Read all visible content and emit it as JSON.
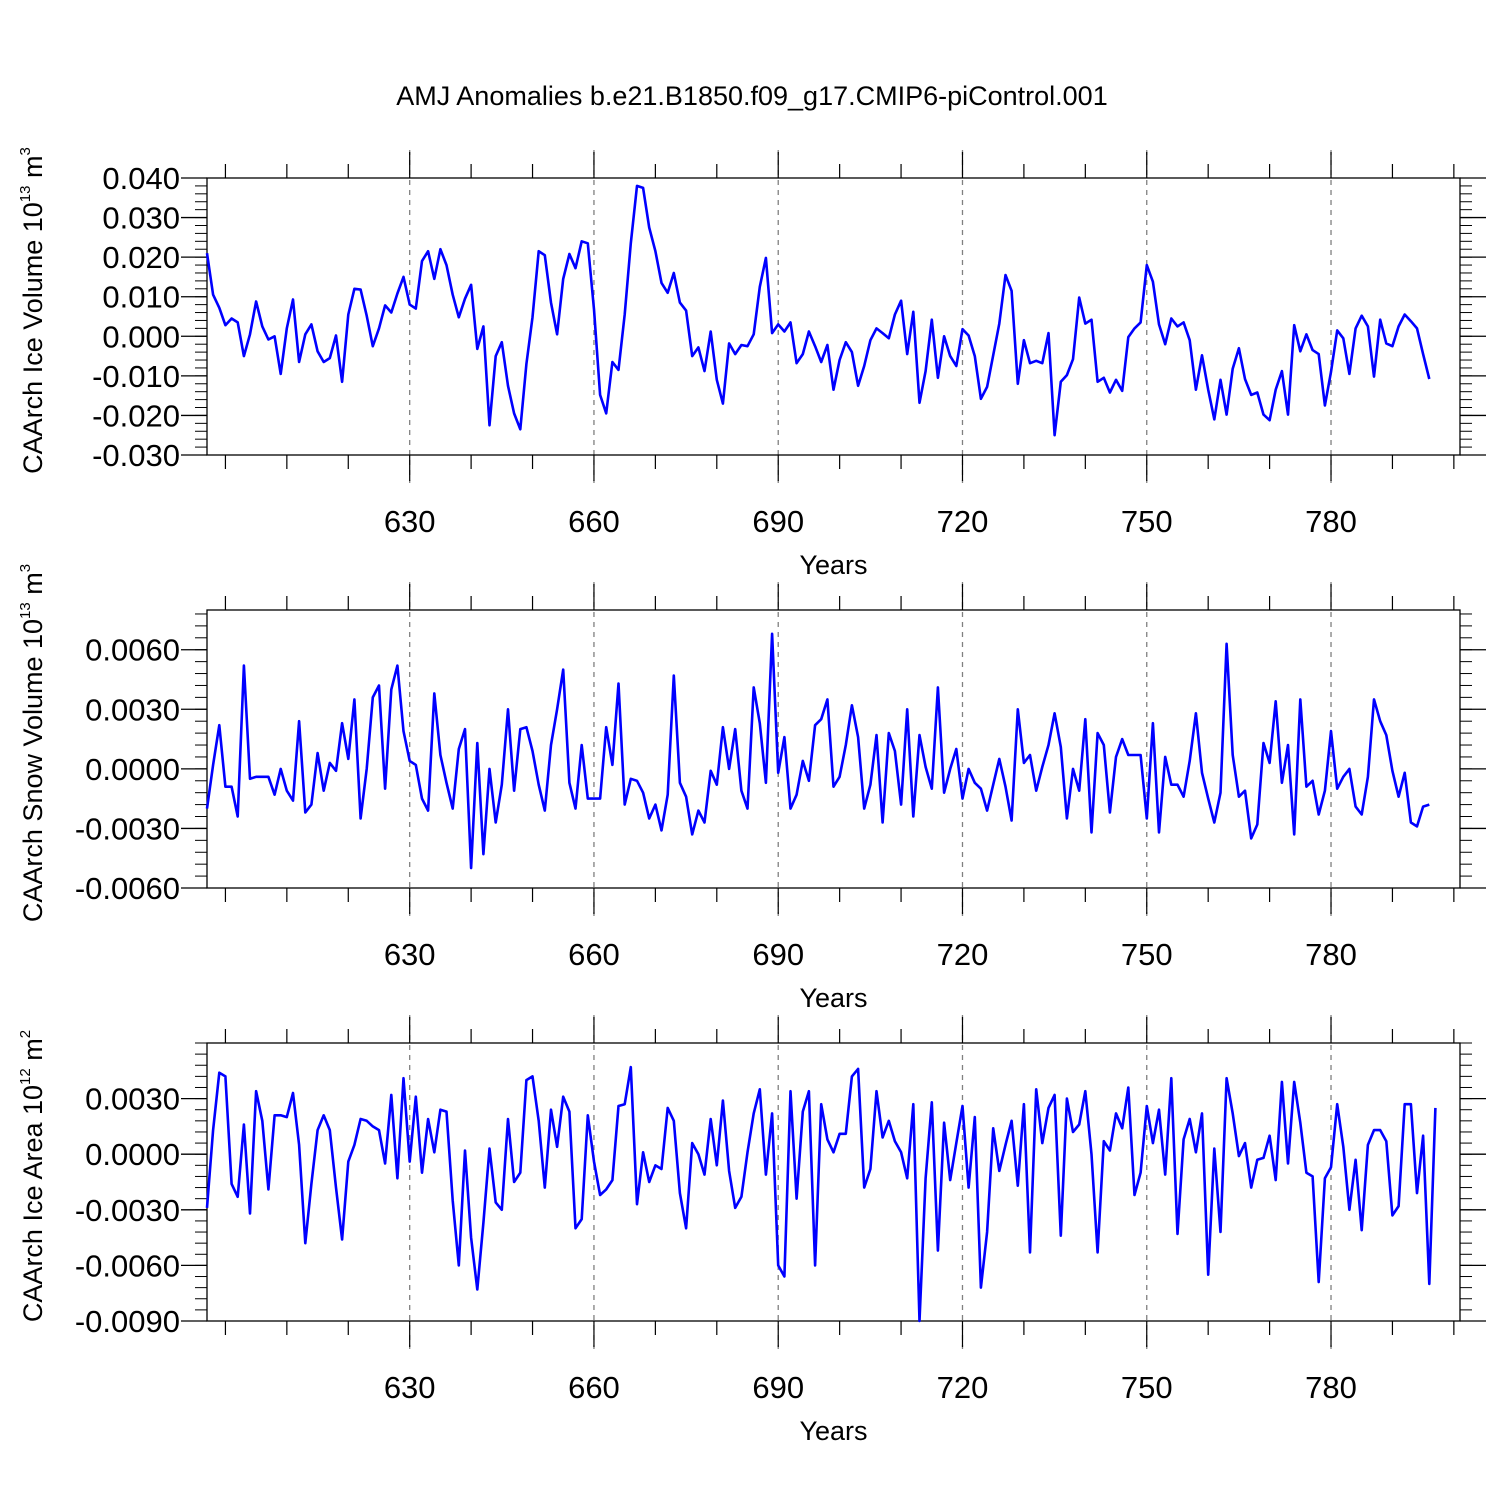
{
  "title": "AMJ Anomalies b.e21.B1850.f09_g17.CMIP6-piControl.001",
  "colors": {
    "line": "#0000ff",
    "grid": "#808080",
    "axes": "#000000"
  },
  "chart_data": [
    {
      "type": "line",
      "xlabel": "Years",
      "ylabel": {
        "text": "CAArch Ice Volume 10",
        "exponent": "13",
        "unit": " m",
        "unit_exponent": "3"
      },
      "x_range": [
        597,
        801
      ],
      "x_ticks": [
        "630",
        "660",
        "690",
        "720",
        "750",
        "780"
      ],
      "vertical_grid": "dashed at major x ticks",
      "ylim": [
        -0.03,
        0.04
      ],
      "y_ticks": [
        "0.040",
        "0.030",
        "0.020",
        "0.010",
        "0.000",
        "-0.010",
        "-0.020",
        "-0.030"
      ],
      "series": [
        {
          "x_start": 597,
          "values": [
            0.021,
            0.0105,
            0.0072,
            0.0028,
            0.0045,
            0.0035,
            -0.005,
            0.0005,
            0.0088,
            0.0025,
            -0.0008,
            0.0,
            -0.0095,
            0.002,
            0.0093,
            -0.0065,
            0.0005,
            0.003,
            -0.0038,
            -0.0065,
            -0.0055,
            0.0002,
            -0.0115,
            0.0055,
            0.012,
            0.0118,
            0.0052,
            -0.0025,
            0.002,
            0.0078,
            0.006,
            0.0108,
            0.015,
            0.008,
            0.007,
            0.019,
            0.0215,
            0.0145,
            0.022,
            0.018,
            0.0105,
            0.0048,
            0.0095,
            0.013,
            -0.0032,
            0.0025,
            -0.0225,
            -0.005,
            -0.0015,
            -0.0125,
            -0.0195,
            -0.0235,
            -0.007,
            0.0048,
            0.0215,
            0.0205,
            0.0085,
            0.0005,
            0.0145,
            0.0208,
            0.0172,
            0.024,
            0.0235,
            0.0068,
            -0.0148,
            -0.0195,
            -0.0065,
            -0.0085,
            0.0055,
            0.0235,
            0.038,
            0.0375,
            0.0275,
            0.0215,
            0.0135,
            0.011,
            0.016,
            0.0085,
            0.0065,
            -0.005,
            -0.0028,
            -0.0088,
            0.0012,
            -0.011,
            -0.017,
            -0.0018,
            -0.0045,
            -0.0022,
            -0.0025,
            0.0005,
            0.0125,
            0.0198,
            0.0008,
            0.003,
            0.0012,
            0.0035,
            -0.0068,
            -0.0045,
            0.0012,
            -0.0025,
            -0.0065,
            -0.0022,
            -0.0135,
            -0.006,
            -0.0015,
            -0.004,
            -0.0125,
            -0.0075,
            -0.001,
            0.002,
            0.0008,
            -0.0005,
            0.0055,
            0.009,
            -0.0045,
            0.0062,
            -0.0168,
            -0.0088,
            0.0042,
            -0.0105,
            0.0,
            -0.005,
            -0.0075,
            0.0018,
            0.0002,
            -0.005,
            -0.0158,
            -0.0128,
            -0.0048,
            0.0032,
            0.0155,
            0.0115,
            -0.012,
            -0.001,
            -0.0068,
            -0.0062,
            -0.0068,
            0.0008,
            -0.025,
            -0.0115,
            -0.0098,
            -0.0058,
            0.0098,
            0.0032,
            0.0042,
            -0.0115,
            -0.0105,
            -0.0142,
            -0.011,
            -0.0138,
            -0.0002,
            0.002,
            0.0035,
            0.018,
            0.0138,
            0.003,
            -0.002,
            0.0045,
            0.0025,
            0.0035,
            -0.001,
            -0.0135,
            -0.0048,
            -0.0135,
            -0.021,
            -0.011,
            -0.0198,
            -0.0082,
            -0.003,
            -0.0108,
            -0.0148,
            -0.0142,
            -0.0198,
            -0.0212,
            -0.0135,
            -0.0088,
            -0.0198,
            0.0028,
            -0.0038,
            0.0005,
            -0.0035,
            -0.0045,
            -0.0175,
            -0.009,
            0.0015,
            -0.0005,
            -0.0095,
            0.002,
            0.0052,
            0.0025,
            -0.0102,
            0.0042,
            -0.0018,
            -0.0025,
            0.0025,
            0.0055,
            0.0038,
            0.002,
            -0.0045,
            -0.0108
          ]
        }
      ]
    },
    {
      "type": "line",
      "xlabel": "Years",
      "ylabel": {
        "text": "CAArch Snow Volume 10",
        "exponent": "13",
        "unit": " m",
        "unit_exponent": "3"
      },
      "x_range": [
        597,
        801
      ],
      "x_ticks": [
        "630",
        "660",
        "690",
        "720",
        "750",
        "780"
      ],
      "vertical_grid": "dashed at major x ticks",
      "ylim": [
        -0.006,
        0.008
      ],
      "y_ticks": [
        "0.0060",
        "0.0030",
        "0.0000",
        "-0.0030",
        "-0.0060"
      ],
      "series": [
        {
          "x_start": 597,
          "values": [
            -0.002,
            0.0002,
            0.0022,
            -0.0009,
            -0.0009,
            -0.0024,
            0.0052,
            -0.0005,
            -0.0004,
            -0.0004,
            -0.0004,
            -0.0013,
            0.0,
            -0.0011,
            -0.0016,
            0.0024,
            -0.0022,
            -0.0018,
            0.0008,
            -0.0011,
            0.0003,
            -0.0001,
            0.0023,
            0.0005,
            0.0035,
            -0.0025,
            0.0,
            0.0036,
            0.0042,
            -0.001,
            0.004,
            0.0052,
            0.0019,
            0.0004,
            0.0002,
            -0.0015,
            -0.0021,
            0.0038,
            0.0007,
            -0.0007,
            -0.002,
            0.001,
            0.002,
            -0.005,
            0.0013,
            -0.0043,
            0.0,
            -0.0027,
            -0.0008,
            0.003,
            -0.0011,
            0.002,
            0.0021,
            0.0009,
            -0.0008,
            -0.0021,
            0.0012,
            0.003,
            0.005,
            -0.0007,
            -0.002,
            0.0012,
            -0.0015,
            -0.0015,
            -0.0015,
            0.0021,
            0.0002,
            0.0043,
            -0.0018,
            -0.0005,
            -0.0006,
            -0.0012,
            -0.0025,
            -0.0018,
            -0.0031,
            -0.0013,
            0.0047,
            -0.0007,
            -0.0014,
            -0.0033,
            -0.0021,
            -0.0027,
            -0.0001,
            -0.0008,
            0.0021,
            0.0,
            0.002,
            -0.0011,
            -0.002,
            0.0041,
            0.0023,
            -0.0007,
            0.0068,
            -0.0002,
            0.0016,
            -0.002,
            -0.0013,
            0.0004,
            -0.0006,
            0.0022,
            0.0025,
            0.0035,
            -0.0009,
            -0.0004,
            0.0012,
            0.0032,
            0.0016,
            -0.002,
            -0.0008,
            0.0017,
            -0.0027,
            0.0018,
            0.0009,
            -0.0018,
            0.003,
            -0.0024,
            0.0017,
            0.0001,
            -0.001,
            0.0041,
            -0.0012,
            0.0,
            0.001,
            -0.0015,
            0.0,
            -0.0007,
            -0.001,
            -0.0021,
            -0.0008,
            0.0005,
            -0.0009,
            -0.0026,
            0.003,
            0.0003,
            0.0007,
            -0.0011,
            0.0001,
            0.0012,
            0.0028,
            0.0011,
            -0.0025,
            0.0,
            -0.0011,
            0.0025,
            -0.0032,
            0.0018,
            0.0012,
            -0.0022,
            0.0006,
            0.0015,
            0.0007,
            0.0007,
            0.0007,
            -0.0025,
            0.0023,
            -0.0032,
            0.0006,
            -0.0008,
            -0.0008,
            -0.0014,
            0.0004,
            0.0028,
            -0.0002,
            -0.0015,
            -0.0027,
            -0.0012,
            0.0063,
            0.0007,
            -0.0014,
            -0.0011,
            -0.0035,
            -0.0028,
            0.0013,
            0.0003,
            0.0034,
            -0.0007,
            0.0012,
            -0.0033,
            0.0035,
            -0.0009,
            -0.0006,
            -0.0023,
            -0.0011,
            0.0019,
            -0.001,
            -0.0004,
            0.0,
            -0.0019,
            -0.0023,
            -0.0004,
            0.0035,
            0.0024,
            0.0017,
            -0.0001,
            -0.0014,
            -0.0002,
            -0.0027,
            -0.0029,
            -0.0019,
            -0.0018
          ]
        }
      ]
    },
    {
      "type": "line",
      "xlabel": "Years",
      "ylabel": {
        "text": "CAArch Ice Area 10",
        "exponent": "12",
        "unit": " m",
        "unit_exponent": "2"
      },
      "x_range": [
        597,
        801
      ],
      "x_ticks": [
        "630",
        "660",
        "690",
        "720",
        "750",
        "780"
      ],
      "vertical_grid": "dashed at major x ticks",
      "ylim": [
        -0.009,
        0.006
      ],
      "y_ticks": [
        "0.0030",
        "0.0000",
        "-0.0030",
        "-0.0060",
        "-0.0090"
      ],
      "series": [
        {
          "x_start": 597,
          "values": [
            -0.0029,
            0.0013,
            0.0044,
            0.0042,
            -0.0016,
            -0.0023,
            0.0016,
            -0.0032,
            0.0034,
            0.0018,
            -0.0019,
            0.0021,
            0.0021,
            0.002,
            0.0033,
            0.0005,
            -0.0048,
            -0.0016,
            0.0013,
            0.0021,
            0.0013,
            -0.0018,
            -0.0046,
            -0.0004,
            0.0005,
            0.0019,
            0.0018,
            0.0015,
            0.0013,
            -0.0005,
            0.0032,
            -0.0013,
            0.0041,
            -0.0004,
            0.0031,
            -0.001,
            0.0019,
            0.0001,
            0.0024,
            0.0023,
            -0.0025,
            -0.006,
            0.0002,
            -0.0045,
            -0.0073,
            -0.0037,
            0.0003,
            -0.0026,
            -0.003,
            0.0019,
            -0.0015,
            -0.001,
            0.004,
            0.0042,
            0.0018,
            -0.0018,
            0.0024,
            0.0004,
            0.0031,
            0.0023,
            -0.004,
            -0.0035,
            0.0021,
            -0.0004,
            -0.0022,
            -0.0019,
            -0.0014,
            0.0026,
            0.0027,
            0.0047,
            -0.0027,
            0.0001,
            -0.0015,
            -0.0006,
            -0.0008,
            0.0025,
            0.0018,
            -0.0021,
            -0.004,
            0.0006,
            0.0,
            -0.0011,
            0.0019,
            -0.0006,
            0.0029,
            -0.0009,
            -0.0029,
            -0.0023,
            0.0001,
            0.0022,
            0.0035,
            -0.0011,
            0.0022,
            -0.006,
            -0.0066,
            0.0034,
            -0.0024,
            0.0023,
            0.0034,
            -0.006,
            0.0027,
            0.0008,
            0.0001,
            0.0011,
            0.0011,
            0.0042,
            0.0046,
            -0.0018,
            -0.0008,
            0.0034,
            0.0009,
            0.0018,
            0.0007,
            0.0001,
            -0.0013,
            0.0027,
            -0.009,
            -0.0013,
            0.0028,
            -0.0052,
            0.0017,
            -0.0014,
            0.0006,
            0.0026,
            -0.0018,
            0.002,
            -0.0072,
            -0.0042,
            0.0014,
            -0.0009,
            0.0005,
            0.0018,
            -0.0017,
            0.0027,
            -0.0053,
            0.0035,
            0.0006,
            0.0025,
            0.0032,
            -0.0044,
            0.003,
            0.0012,
            0.0016,
            0.0034,
            0.0,
            -0.0053,
            0.0007,
            0.0002,
            0.0022,
            0.0014,
            0.0036,
            -0.0022,
            -0.001,
            0.0026,
            0.0006,
            0.0024,
            -0.0011,
            0.0041,
            -0.0043,
            0.0008,
            0.0019,
            0.0001,
            0.0022,
            -0.0065,
            0.0003,
            -0.0042,
            0.0041,
            0.0022,
            -0.0001,
            0.0006,
            -0.0018,
            -0.0003,
            -0.0002,
            0.001,
            -0.0014,
            0.0039,
            -0.0005,
            0.0039,
            0.0017,
            -0.001,
            -0.0012,
            -0.0069,
            -0.0013,
            -0.0007,
            0.0027,
            0.0004,
            -0.003,
            -0.0003,
            -0.0041,
            0.0005,
            0.0013,
            0.0013,
            0.0007,
            -0.0033,
            -0.0028,
            0.0027,
            0.0027,
            -0.0021,
            0.001,
            -0.007,
            0.0025
          ]
        }
      ]
    }
  ]
}
